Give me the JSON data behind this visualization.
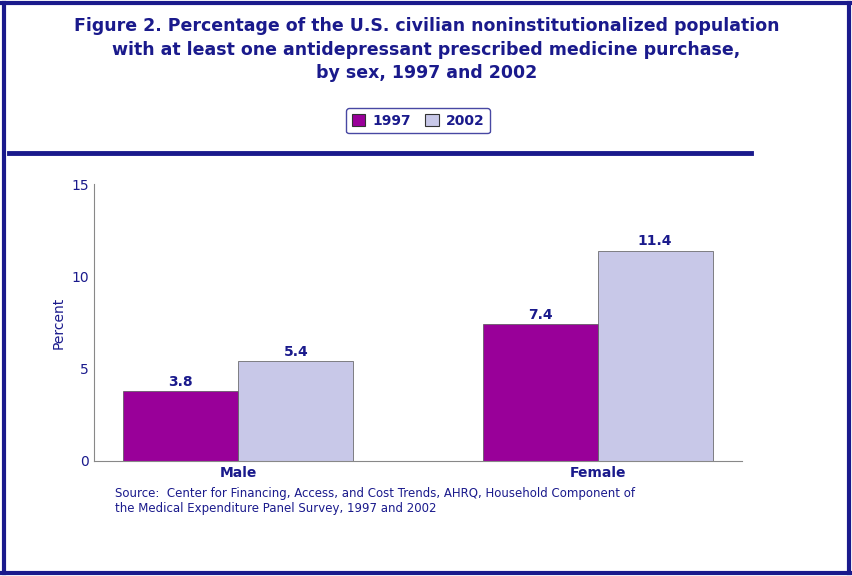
{
  "title_line1": "Figure 2. Percentage of the U.S. civilian noninstitutionalized population",
  "title_line2": "with at least one antidepressant prescribed medicine purchase,",
  "title_line3": "by sex, 1997 and 2002",
  "categories": [
    "Male",
    "Female"
  ],
  "values_1997": [
    3.8,
    7.4
  ],
  "values_2002": [
    5.4,
    11.4
  ],
  "color_1997": "#990099",
  "color_2002": "#c8c8e8",
  "ylabel": "Percent",
  "ylim": [
    0,
    15
  ],
  "yticks": [
    0,
    5,
    10,
    15
  ],
  "legend_labels": [
    "1997",
    "2002"
  ],
  "bar_width": 0.32,
  "title_color": "#1a1a8c",
  "axis_label_color": "#1a1a8c",
  "tick_label_color": "#1a1a8c",
  "background_color": "#ffffff",
  "source_text": "Source:  Center for Financing, Access, and Cost Trends, AHRQ, Household Component of\nthe Medical Expenditure Panel Survey, 1997 and 2002",
  "title_fontsize": 12.5,
  "label_fontsize": 10,
  "tick_fontsize": 10,
  "value_fontsize": 10,
  "legend_fontsize": 10,
  "source_fontsize": 8.5,
  "separator_line_color": "#1a1a8c",
  "bottom_line_color": "#1a1a8c"
}
